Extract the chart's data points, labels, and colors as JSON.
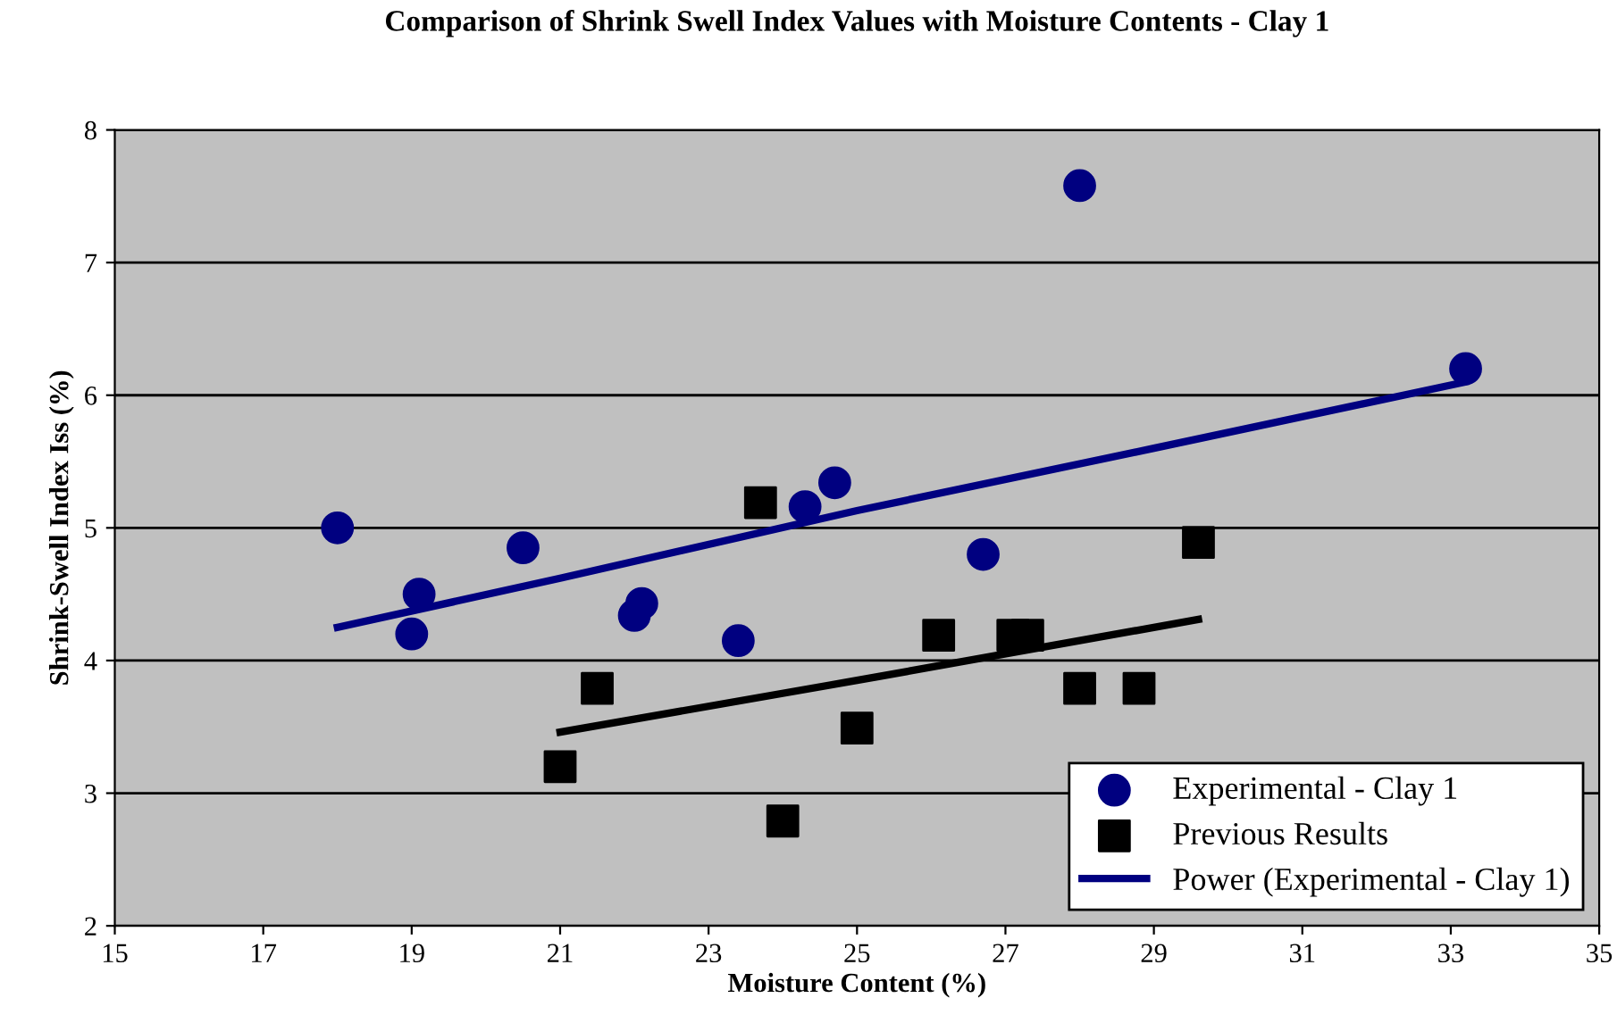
{
  "chart_data": {
    "type": "scatter",
    "title": "Comparison of Shrink Swell Index Values with Moisture Contents - Clay 1",
    "xlabel": "Moisture Content (%)",
    "ylabel": "Shrink-Swell Index Iss (%)",
    "xlim": [
      15,
      35
    ],
    "xticks": [
      15,
      17,
      19,
      21,
      23,
      25,
      27,
      29,
      31,
      33,
      35
    ],
    "ylim": [
      2,
      8
    ],
    "yticks": [
      2,
      3,
      4,
      5,
      6,
      7,
      8
    ],
    "grid": "y",
    "legend": "bottom right",
    "series": [
      {
        "name": "Experimental - Clay 1",
        "marker": "circle",
        "color": "#000080",
        "x": [
          18.0,
          19.1,
          19.0,
          20.5,
          22.0,
          22.1,
          23.4,
          24.3,
          24.7,
          26.7,
          28.0,
          33.2
        ],
        "values": [
          5.0,
          4.5,
          4.2,
          4.85,
          4.34,
          4.43,
          4.15,
          5.16,
          5.34,
          4.8,
          7.58,
          6.2
        ]
      },
      {
        "name": "Previous Results",
        "marker": "square",
        "color": "#000000",
        "x": [
          23.7,
          21.5,
          21.0,
          24.0,
          25.0,
          26.1,
          27.1,
          27.3,
          28.0,
          28.8,
          29.6
        ],
        "values": [
          5.19,
          3.79,
          3.2,
          2.79,
          3.49,
          4.19,
          4.19,
          4.19,
          3.79,
          3.79,
          4.89
        ]
      },
      {
        "name": "Power (Experimental - Clay 1)",
        "type": "line",
        "color": "#000080",
        "x": [
          18,
          21,
          25,
          29,
          33.2
        ],
        "values": [
          4.25,
          4.62,
          5.13,
          5.6,
          6.1
        ]
      },
      {
        "type": "line",
        "color": "#000000",
        "x": [
          21,
          25,
          29.6
        ],
        "values": [
          3.46,
          3.85,
          4.31
        ]
      }
    ]
  }
}
